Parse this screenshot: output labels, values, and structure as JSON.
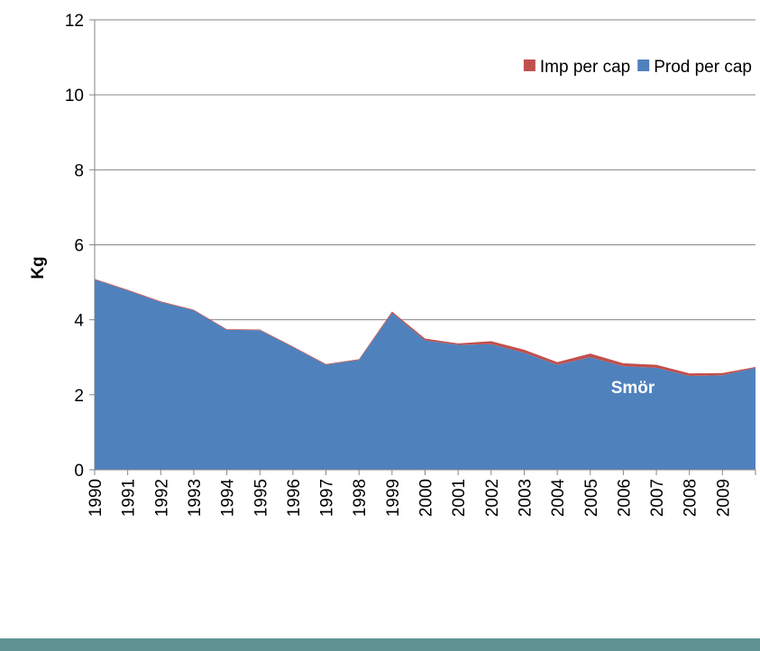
{
  "chart_data": {
    "type": "stacked-area",
    "y_label": "Kg",
    "annotation": "Smör",
    "categories": [
      "1990",
      "1991",
      "1992",
      "1993",
      "1994",
      "1995",
      "1996",
      "1997",
      "1998",
      "1999",
      "2000",
      "2001",
      "2002",
      "2003",
      "2004",
      "2005",
      "2006",
      "2007",
      "2008",
      "2009",
      null
    ],
    "series": [
      {
        "name": "Prod per cap",
        "color": "#4f81bd",
        "values": [
          5.07,
          4.78,
          4.47,
          4.25,
          3.73,
          3.72,
          3.27,
          2.8,
          2.93,
          4.18,
          3.45,
          3.33,
          3.35,
          3.12,
          2.8,
          3.0,
          2.76,
          2.72,
          2.5,
          2.52,
          2.72
        ]
      },
      {
        "name": "Imp per cap",
        "color": "#c0504d",
        "values": [
          0.02,
          0.02,
          0.02,
          0.02,
          0.02,
          0.02,
          0.02,
          0.02,
          0.02,
          0.04,
          0.05,
          0.04,
          0.08,
          0.08,
          0.07,
          0.1,
          0.08,
          0.08,
          0.07,
          0.06,
          0.02
        ]
      }
    ],
    "legend_order": [
      1,
      0
    ],
    "ylim": [
      0,
      12
    ],
    "yticks": [
      0,
      2,
      4,
      6,
      8,
      10,
      12
    ],
    "grid": true,
    "legend_position": "upper right"
  }
}
